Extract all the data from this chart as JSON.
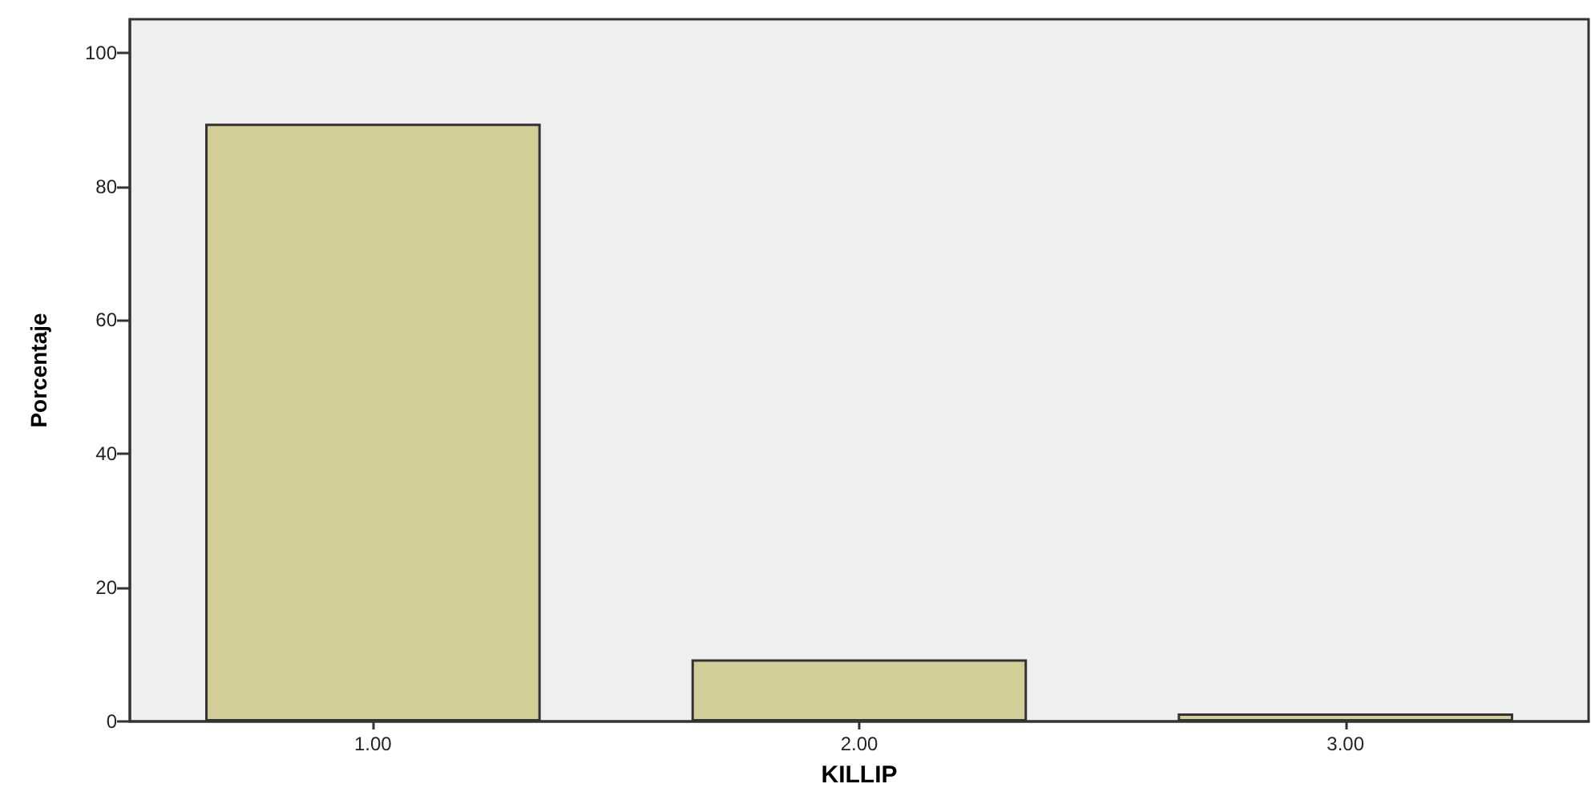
{
  "chart_data": {
    "type": "bar",
    "xlabel": "KILLIP",
    "ylabel": "Porcentaje",
    "categories": [
      "1.00",
      "2.00",
      "3.00"
    ],
    "values": [
      89.4,
      9.3,
      1.2
    ],
    "color": "#d3ce98",
    "ylim": [
      0,
      105
    ],
    "yticks": [
      0,
      20,
      40,
      60,
      80,
      100
    ],
    "grid": false
  }
}
